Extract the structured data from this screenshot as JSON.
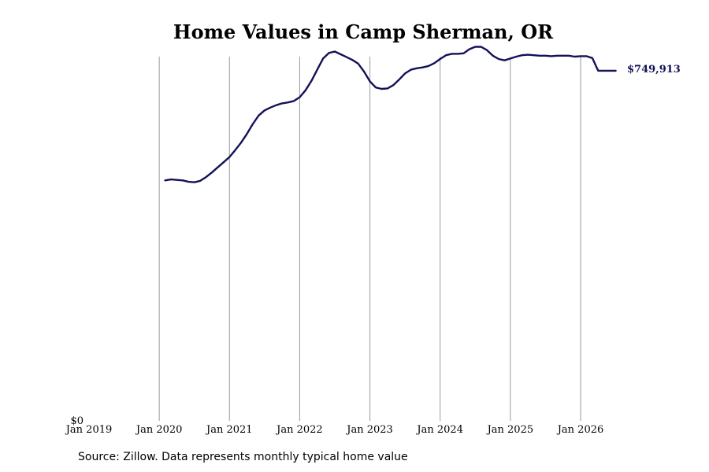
{
  "title": "Home Values in Camp Sherman, OR",
  "source_note": "Source: Zillow. Data represents monthly typical home value",
  "colors": {
    "line": "#131157",
    "grid": "#9a9a9a",
    "text": "#000000"
  },
  "chart_data": {
    "type": "line",
    "title": "Home Values in Camp Sherman, OR",
    "xlabel": "",
    "ylabel": "",
    "grid": "vertical",
    "x_ticks": [
      {
        "date": "2019-01",
        "label": "Jan 2019"
      },
      {
        "date": "2020-01",
        "label": "Jan 2020"
      },
      {
        "date": "2021-01",
        "label": "Jan 2021"
      },
      {
        "date": "2022-01",
        "label": "Jan 2022"
      },
      {
        "date": "2023-01",
        "label": "Jan 2023"
      },
      {
        "date": "2024-01",
        "label": "Jan 2024"
      },
      {
        "date": "2025-01",
        "label": "Jan 2025"
      },
      {
        "date": "2026-01",
        "label": "Jan 2026"
      }
    ],
    "xlim": [
      "2019-01",
      "2026-08"
    ],
    "y_ticks": [
      {
        "value": 0,
        "label": "$0"
      }
    ],
    "ylim": [
      0,
      780000
    ],
    "end_label": "$749,913",
    "series": [
      {
        "x": [
          "2020-02",
          "2020-03",
          "2020-04",
          "2020-05",
          "2020-06",
          "2020-07",
          "2020-08",
          "2020-09",
          "2020-10",
          "2020-11",
          "2020-12",
          "2021-01",
          "2021-02",
          "2021-03",
          "2021-04",
          "2021-05",
          "2021-06",
          "2021-07",
          "2021-08",
          "2021-09",
          "2021-10",
          "2021-11",
          "2021-12",
          "2022-01",
          "2022-02",
          "2022-03",
          "2022-04",
          "2022-05",
          "2022-06",
          "2022-07",
          "2022-08",
          "2022-09",
          "2022-10",
          "2022-11",
          "2022-12",
          "2023-01",
          "2023-02",
          "2023-03",
          "2023-04",
          "2023-05",
          "2023-06",
          "2023-07",
          "2023-08",
          "2023-09",
          "2023-10",
          "2023-11",
          "2023-12",
          "2024-01",
          "2024-02",
          "2024-03",
          "2024-04",
          "2024-05",
          "2024-06",
          "2024-07",
          "2024-08",
          "2024-09",
          "2024-10",
          "2024-11",
          "2024-12",
          "2025-01",
          "2025-02",
          "2025-03",
          "2025-04",
          "2025-05",
          "2025-06",
          "2025-07",
          "2025-08",
          "2025-09",
          "2025-10",
          "2025-11",
          "2025-12",
          "2026-01",
          "2026-02",
          "2026-03",
          "2026-04",
          "2026-05",
          "2026-06",
          "2026-07"
        ],
        "values": [
          515000,
          517000,
          516000,
          515000,
          512000,
          511000,
          514000,
          522000,
          532000,
          543000,
          554000,
          565000,
          580000,
          596000,
          615000,
          636000,
          654000,
          665000,
          671000,
          676000,
          680000,
          682000,
          685000,
          693000,
          708000,
          728000,
          752000,
          776000,
          788000,
          791000,
          785000,
          779000,
          773000,
          765000,
          748000,
          727000,
          714000,
          711000,
          712000,
          719000,
          731000,
          744000,
          752000,
          755000,
          757000,
          760000,
          766000,
          775000,
          783000,
          786000,
          786000,
          787000,
          796000,
          801000,
          801000,
          794000,
          782000,
          775000,
          772000,
          776000,
          780000,
          783000,
          784000,
          783000,
          782000,
          782000,
          781000,
          782000,
          782000,
          782000,
          780000,
          781000,
          781000,
          777000,
          749913,
          749913,
          749913,
          749913
        ]
      }
    ]
  }
}
